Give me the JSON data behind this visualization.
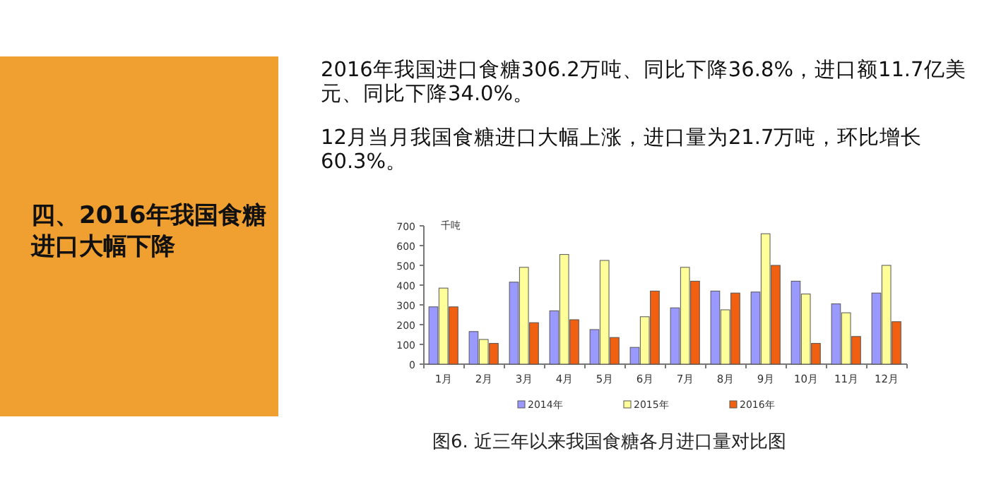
{
  "chart_data": {
    "type": "bar",
    "title": "四、2016年我国食糖进口大幅下降",
    "ylabel": "千吨",
    "categories": [
      "1月",
      "2月",
      "3月",
      "4月",
      "5月",
      "6月",
      "7月",
      "8月",
      "9月",
      "10月",
      "11月",
      "12月"
    ],
    "series": [
      {
        "name": "2014年",
        "color": "#9999ff",
        "values": [
          290,
          165,
          415,
          270,
          175,
          85,
          285,
          370,
          365,
          420,
          305,
          360
        ]
      },
      {
        "name": "2015年",
        "color": "#ffff99",
        "values": [
          385,
          125,
          490,
          555,
          525,
          240,
          490,
          275,
          660,
          355,
          260,
          500
        ]
      },
      {
        "name": "2016年",
        "color": "#f06010",
        "values": [
          290,
          105,
          210,
          225,
          135,
          370,
          420,
          360,
          500,
          105,
          140,
          215
        ]
      }
    ],
    "ylim": [
      0,
      700
    ],
    "yticks": [
      0,
      100,
      200,
      300,
      400,
      500,
      600,
      700
    ],
    "legend": "bottom",
    "annotations": [
      "2016年我国进口食糖306.2万吨、同比下降36.8%，进口额11.7亿美元、同比下降34.0%。",
      "12月当月我国食糖进口大幅上涨，进口量为21.7万吨，环比增长60.3%。",
      "图6. 近三年以来我国食糖各月进口量对比图"
    ]
  }
}
